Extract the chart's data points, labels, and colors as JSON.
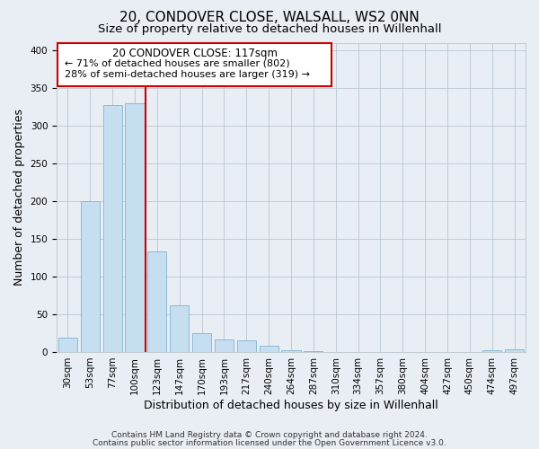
{
  "title": "20, CONDOVER CLOSE, WALSALL, WS2 0NN",
  "subtitle": "Size of property relative to detached houses in Willenhall",
  "xlabel": "Distribution of detached houses by size in Willenhall",
  "ylabel": "Number of detached properties",
  "bar_labels": [
    "30sqm",
    "53sqm",
    "77sqm",
    "100sqm",
    "123sqm",
    "147sqm",
    "170sqm",
    "193sqm",
    "217sqm",
    "240sqm",
    "264sqm",
    "287sqm",
    "310sqm",
    "334sqm",
    "357sqm",
    "380sqm",
    "404sqm",
    "427sqm",
    "450sqm",
    "474sqm",
    "497sqm"
  ],
  "bar_values": [
    19,
    200,
    327,
    330,
    133,
    62,
    25,
    17,
    16,
    8,
    2,
    1,
    0,
    0,
    0,
    0,
    0,
    0,
    0,
    2,
    3
  ],
  "bar_color": "#c6dff0",
  "bar_edge_color": "#7fb3d3",
  "property_line_index": 3.5,
  "annotation_title": "20 CONDOVER CLOSE: 117sqm",
  "annotation_line1": "← 71% of detached houses are smaller (802)",
  "annotation_line2": "28% of semi-detached houses are larger (319) →",
  "ylim": [
    0,
    410
  ],
  "yticks": [
    0,
    50,
    100,
    150,
    200,
    250,
    300,
    350,
    400
  ],
  "footer1": "Contains HM Land Registry data © Crown copyright and database right 2024.",
  "footer2": "Contains public sector information licensed under the Open Government Licence v3.0.",
  "bg_color": "#e8eef4",
  "plot_bg_color": "#e8eef4",
  "title_fontsize": 11,
  "subtitle_fontsize": 9.5,
  "axis_label_fontsize": 9,
  "tick_fontsize": 7.5,
  "footer_fontsize": 6.5
}
